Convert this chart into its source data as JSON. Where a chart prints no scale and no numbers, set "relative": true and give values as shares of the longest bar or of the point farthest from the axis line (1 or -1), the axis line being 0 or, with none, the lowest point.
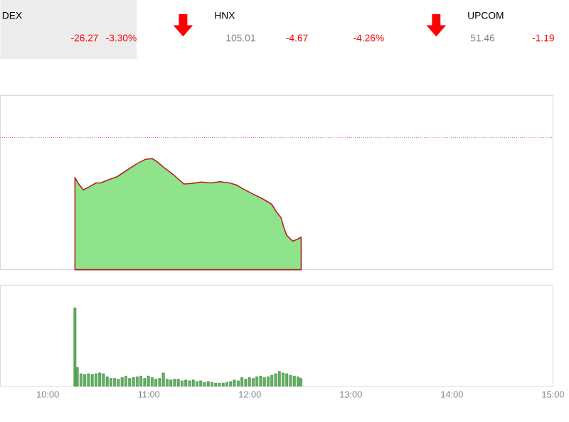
{
  "chart_data": [
    {
      "type": "area",
      "relative": true,
      "tick_labels": false,
      "annotations": [
        "DEX",
        "-26.27",
        "-3.30%",
        "HNX",
        "105.01",
        "-4.67",
        "-4.26%",
        "UPCOM",
        "51.46",
        "-1.19"
      ],
      "xlim": [
        9.53,
        15.0
      ],
      "ref_lines": [
        {
          "axis": "y",
          "value": 1.19,
          "color": "#b22222",
          "line_style": "dotted"
        }
      ],
      "series": [
        {
          "color": "#8fe38a",
          "x": [
            10.269,
            10.306,
            10.352,
            10.408,
            10.478,
            10.524,
            10.593,
            10.686,
            10.779,
            10.871,
            10.964,
            11.034,
            11.08,
            11.15,
            11.242,
            11.349,
            11.428,
            11.521,
            11.613,
            11.706,
            11.798,
            11.867,
            11.937,
            12.031,
            12.123,
            12.216,
            12.262,
            12.309,
            12.332,
            12.364,
            12.425,
            12.471,
            12.508
          ],
          "values": [
            0.83,
            0.771,
            0.719,
            0.745,
            0.781,
            0.781,
            0.807,
            0.837,
            0.893,
            0.948,
            0.993,
            1.0,
            0.974,
            0.919,
            0.856,
            0.771,
            0.777,
            0.789,
            0.781,
            0.792,
            0.781,
            0.763,
            0.726,
            0.681,
            0.64,
            0.589,
            0.522,
            0.467,
            0.393,
            0.311,
            0.256,
            0.274,
            0.293
          ]
        }
      ]
    },
    {
      "type": "bar",
      "relative": true,
      "tick_labels": "x",
      "xlim": [
        9.53,
        15.0
      ],
      "xticks": [
        {
          "value": 10,
          "label": "10:00"
        },
        {
          "value": 11,
          "label": "11:00"
        },
        {
          "value": 12,
          "label": "12:00"
        },
        {
          "value": 13,
          "label": "13:00"
        },
        {
          "value": 14,
          "label": "14:00"
        },
        {
          "value": 15,
          "label": "15:00"
        }
      ],
      "series": [
        {
          "color": "#5cb85c",
          "x": [
            10.269,
            10.292,
            10.329,
            10.366,
            10.403,
            10.44,
            10.477,
            10.514,
            10.551,
            10.588,
            10.625,
            10.662,
            10.699,
            10.736,
            10.773,
            10.81,
            10.848,
            10.885,
            10.922,
            10.959,
            10.996,
            11.033,
            11.07,
            11.107,
            11.144,
            11.181,
            11.218,
            11.255,
            11.292,
            11.329,
            11.366,
            11.403,
            11.44,
            11.477,
            11.514,
            11.551,
            11.588,
            11.625,
            11.662,
            11.699,
            11.736,
            11.773,
            11.81,
            11.847,
            11.885,
            11.922,
            11.959,
            11.996,
            12.033,
            12.07,
            12.107,
            12.144,
            12.181,
            12.218,
            12.255,
            12.292,
            12.329,
            12.366,
            12.403,
            12.44,
            12.477,
            12.505
          ],
          "values": [
            1.0,
            0.24,
            0.16,
            0.15,
            0.16,
            0.15,
            0.16,
            0.17,
            0.16,
            0.12,
            0.1,
            0.1,
            0.09,
            0.11,
            0.13,
            0.1,
            0.11,
            0.12,
            0.13,
            0.1,
            0.13,
            0.11,
            0.09,
            0.1,
            0.17,
            0.09,
            0.08,
            0.09,
            0.09,
            0.07,
            0.08,
            0.07,
            0.08,
            0.06,
            0.07,
            0.05,
            0.06,
            0.05,
            0.04,
            0.04,
            0.04,
            0.05,
            0.06,
            0.08,
            0.07,
            0.11,
            0.09,
            0.11,
            0.1,
            0.12,
            0.13,
            0.11,
            0.12,
            0.14,
            0.16,
            0.19,
            0.17,
            0.16,
            0.14,
            0.13,
            0.12,
            0.1
          ]
        }
      ]
    }
  ]
}
